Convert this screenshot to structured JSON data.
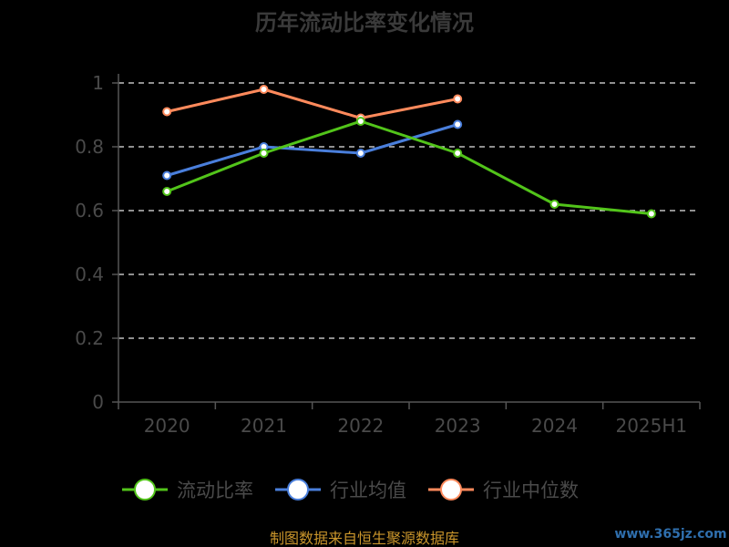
{
  "chart_data": {
    "type": "line",
    "title": "历年流动比率变化情况",
    "categories": [
      "2020",
      "2021",
      "2022",
      "2023",
      "2024",
      "2025H1"
    ],
    "ylim": [
      0,
      1
    ],
    "yticks": [
      "0",
      "0.2",
      "0.4",
      "0.6",
      "0.8",
      "1"
    ],
    "grid": true,
    "legend_position": "bottom",
    "series": [
      {
        "name": "流动比率",
        "color": "#52c41a",
        "values": [
          0.66,
          0.78,
          0.88,
          0.78,
          0.62,
          0.59
        ]
      },
      {
        "name": "行业均值",
        "color": "#4a7fdc",
        "values": [
          0.71,
          0.8,
          0.78,
          0.87,
          null,
          null
        ]
      },
      {
        "name": "行业中位数",
        "color": "#ff8a5c",
        "values": [
          0.91,
          0.98,
          0.89,
          0.95,
          null,
          null
        ]
      }
    ]
  },
  "source_text": "制图数据来自恒生聚源数据库",
  "watermark_text": "www.365jz.com"
}
